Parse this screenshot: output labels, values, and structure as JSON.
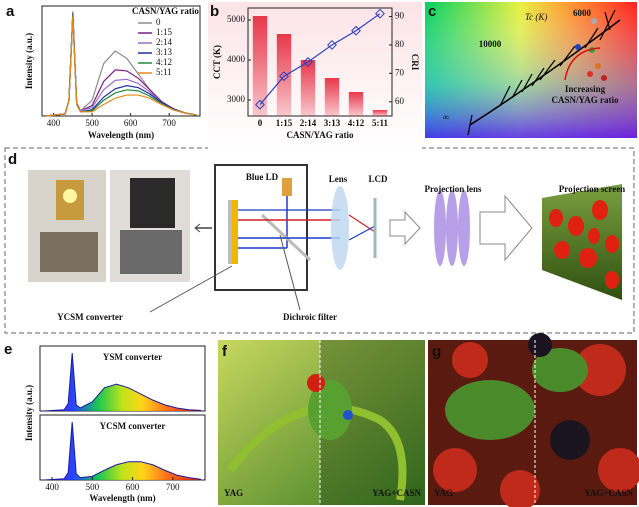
{
  "chart_data": [
    {
      "type": "line",
      "label": "a",
      "xlabel": "Wavelength (nm)",
      "ylabel": "Intensity (a.u.)",
      "x": [
        380,
        430,
        440,
        450,
        460,
        470,
        500,
        530,
        560,
        590,
        620,
        650,
        680,
        710,
        740,
        770
      ],
      "xlim": [
        370,
        780
      ],
      "xticks": [
        400,
        500,
        600,
        700
      ],
      "ylim": [
        0,
        1.05
      ],
      "legend": "upper right",
      "legend_title": "CASN/YAG ratio",
      "series": [
        {
          "name": "0",
          "color": "#8c8c8c",
          "values": [
            0,
            0.02,
            0.15,
            1.0,
            0.12,
            0.05,
            0.15,
            0.5,
            0.62,
            0.55,
            0.4,
            0.25,
            0.13,
            0.06,
            0.03,
            0.01
          ]
        },
        {
          "name": "1:15",
          "color": "#7a1f8a",
          "values": [
            0,
            0.02,
            0.15,
            0.98,
            0.12,
            0.05,
            0.1,
            0.33,
            0.44,
            0.43,
            0.36,
            0.25,
            0.14,
            0.07,
            0.03,
            0.01
          ]
        },
        {
          "name": "2:14",
          "color": "#9b6fc4",
          "values": [
            0,
            0.02,
            0.15,
            0.97,
            0.12,
            0.05,
            0.08,
            0.25,
            0.34,
            0.35,
            0.31,
            0.23,
            0.13,
            0.07,
            0.03,
            0.01
          ]
        },
        {
          "name": "3:13",
          "color": "#1f2fa0",
          "values": [
            0,
            0.02,
            0.15,
            0.96,
            0.12,
            0.04,
            0.06,
            0.18,
            0.26,
            0.29,
            0.27,
            0.21,
            0.13,
            0.07,
            0.03,
            0.01
          ]
        },
        {
          "name": "4:12",
          "color": "#1e8a3c",
          "values": [
            0,
            0.02,
            0.15,
            0.96,
            0.11,
            0.04,
            0.05,
            0.15,
            0.22,
            0.25,
            0.24,
            0.19,
            0.12,
            0.06,
            0.03,
            0.01
          ]
        },
        {
          "name": "5:11",
          "color": "#e8891e",
          "values": [
            0,
            0.02,
            0.15,
            0.95,
            0.11,
            0.04,
            0.04,
            0.11,
            0.17,
            0.2,
            0.2,
            0.17,
            0.11,
            0.06,
            0.03,
            0.01
          ]
        }
      ]
    },
    {
      "type": "bar-line",
      "label": "b",
      "xlabel": "CASN/YAG ratio",
      "ylabel": "CCT (K)",
      "y2label": "CRI",
      "categories": [
        "0",
        "1:15",
        "2:14",
        "3:13",
        "4:12",
        "5:11"
      ],
      "series": [
        {
          "name": "CCT (K)",
          "type": "bar",
          "color": "#e8384a",
          "values": [
            5100,
            4650,
            4000,
            3550,
            3200,
            2750
          ]
        },
        {
          "name": "CRI",
          "type": "line",
          "axis": "y2",
          "color": "#2b3fbf",
          "values": [
            59,
            69,
            74,
            80,
            85,
            91
          ]
        }
      ],
      "ylim": [
        2600,
        5300
      ],
      "yticks": [
        3000,
        4000,
        5000
      ],
      "y2lim": [
        55,
        93
      ],
      "y2ticks": [
        60,
        70,
        80,
        90
      ]
    },
    {
      "type": "spectra",
      "label": "e",
      "xlabel": "Wavelength (nm)",
      "ylabel": "Intensity (a.u.)",
      "x": [
        380,
        430,
        440,
        450,
        460,
        470,
        500,
        530,
        560,
        590,
        620,
        650,
        680,
        710,
        740,
        770
      ],
      "xlim": [
        370,
        780
      ],
      "xticks": [
        400,
        500,
        600,
        700
      ],
      "ylim": [
        0,
        1
      ],
      "series": [
        {
          "name": "YSM converter",
          "color": "#1a1aa0",
          "values": [
            0,
            0.02,
            0.12,
            0.95,
            0.1,
            0.05,
            0.15,
            0.38,
            0.44,
            0.38,
            0.28,
            0.18,
            0.1,
            0.05,
            0.02,
            0.01
          ]
        },
        {
          "name": "YCSM converter",
          "color": "#1a1aa0",
          "values": [
            0,
            0.02,
            0.12,
            0.95,
            0.1,
            0.04,
            0.06,
            0.16,
            0.25,
            0.3,
            0.3,
            0.25,
            0.16,
            0.08,
            0.04,
            0.01
          ]
        }
      ]
    }
  ],
  "cie_diagram": {
    "label": "c",
    "tc_label": "Tc (K)",
    "temperatures": [
      "6000",
      "10000",
      "∞"
    ],
    "annotation": [
      "Increasing",
      "CASN/YAG ratio"
    ]
  },
  "projection_diagram": {
    "label": "d",
    "components": [
      "Blue LD",
      "Lens",
      "LCD",
      "Projection lens",
      "Projection screen"
    ],
    "converter": "YCSM converter",
    "filter": "Dichroic filter"
  },
  "photos": [
    {
      "label": "f",
      "left": "YAG",
      "right": "YAG+CASN"
    },
    {
      "label": "g",
      "left": "YAG",
      "right": "YAG+CASN"
    }
  ]
}
